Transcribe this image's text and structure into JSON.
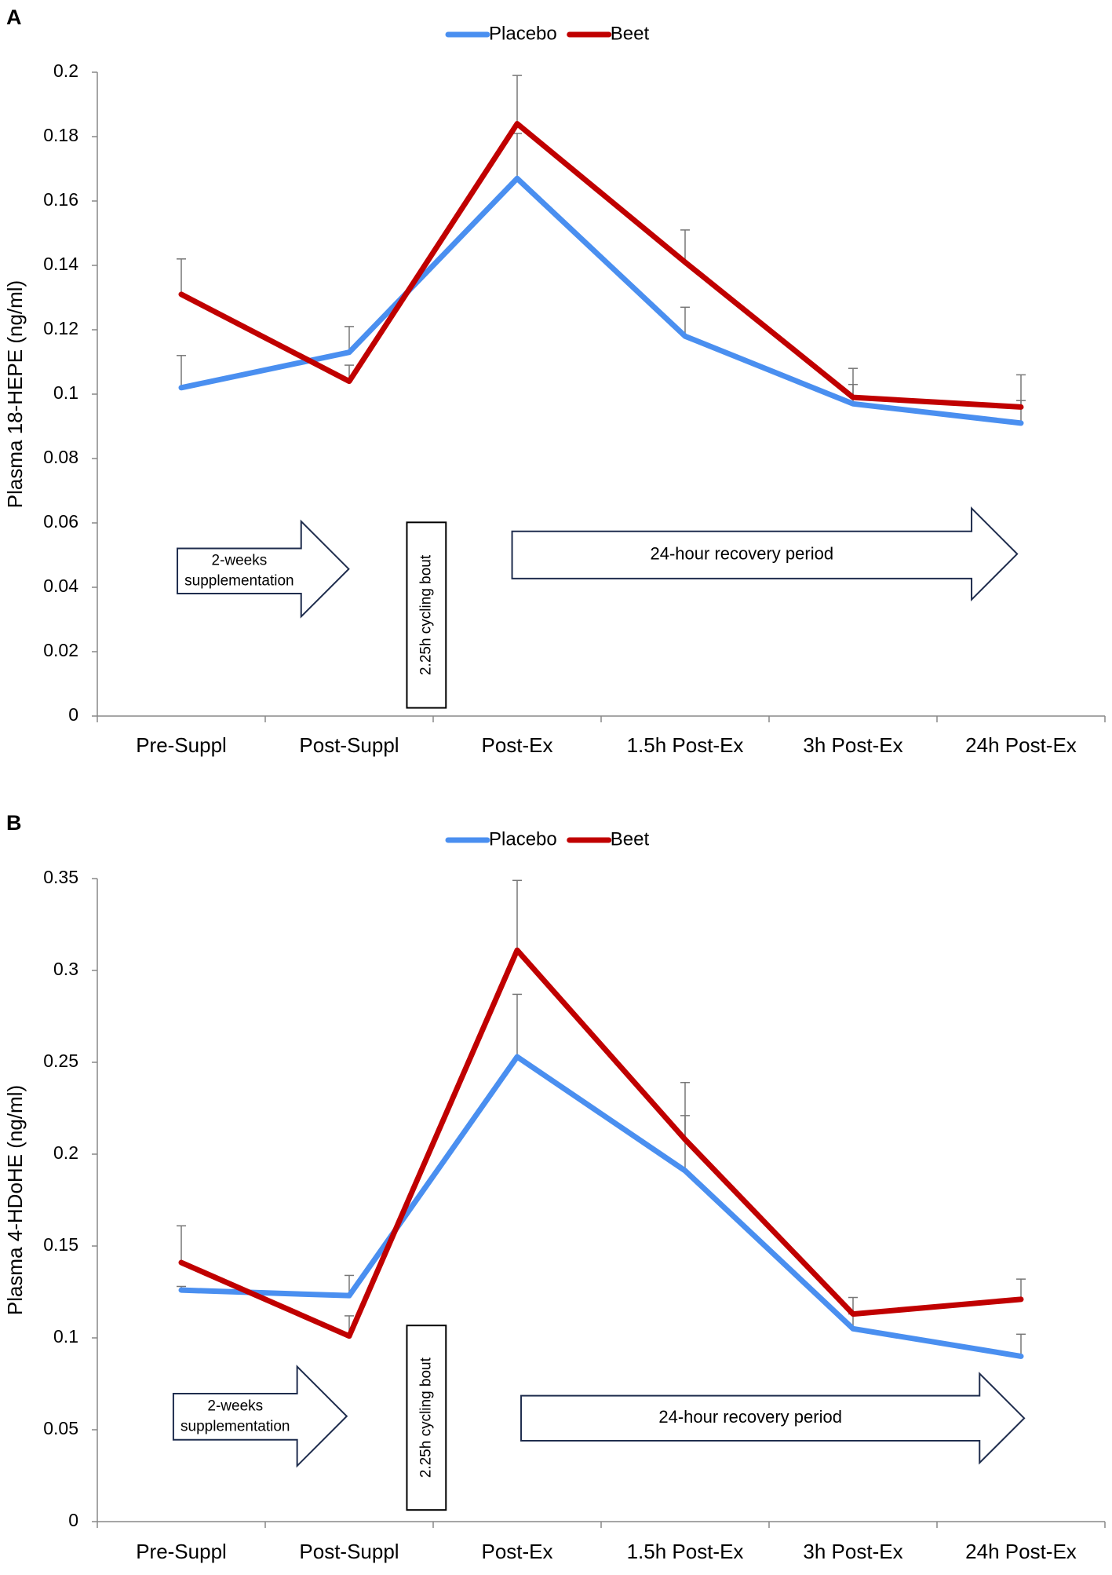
{
  "chart_data": [
    {
      "type": "line",
      "panel_label": "A",
      "ylabel": "Plasma 18-HEPE (ng/ml)",
      "categories": [
        "Pre-Suppl",
        "Post-Suppl",
        "Post-Ex",
        "1.5h Post-Ex",
        "3h Post-Ex",
        "24h Post-Ex"
      ],
      "series": [
        {
          "name": "Placebo",
          "color": "#4a8ff0",
          "values": [
            0.102,
            0.113,
            0.167,
            0.118,
            0.097,
            0.091
          ],
          "errors": [
            0.01,
            0.008,
            0.014,
            0.009,
            0.006,
            0.007
          ]
        },
        {
          "name": "Beet",
          "color": "#c00000",
          "values": [
            0.131,
            0.104,
            0.184,
            0.141,
            0.099,
            0.096
          ],
          "errors": [
            0.011,
            0.005,
            0.015,
            0.01,
            0.009,
            0.01
          ]
        }
      ],
      "ylim": [
        0,
        0.2
      ],
      "yticks": [
        0,
        0.02,
        0.04,
        0.06,
        0.08,
        0.1,
        0.12,
        0.14,
        0.16,
        0.18,
        0.2
      ],
      "annotations": {
        "supplementation": [
          "2-weeks",
          "supplementation"
        ],
        "cycling": "2.25h cycling bout",
        "recovery": "24-hour recovery period"
      }
    },
    {
      "type": "line",
      "panel_label": "B",
      "ylabel": "Plasma 4-HDoHE (ng/ml)",
      "categories": [
        "Pre-Suppl",
        "Post-Suppl",
        "Post-Ex",
        "1.5h Post-Ex",
        "3h Post-Ex",
        "24h Post-Ex"
      ],
      "series": [
        {
          "name": "Placebo",
          "color": "#4a8ff0",
          "values": [
            0.126,
            0.123,
            0.253,
            0.191,
            0.105,
            0.09
          ],
          "errors": [
            0.002,
            0.011,
            0.034,
            0.03,
            0.008,
            0.012
          ]
        },
        {
          "name": "Beet",
          "color": "#c00000",
          "values": [
            0.141,
            0.101,
            0.311,
            0.208,
            0.113,
            0.121
          ],
          "errors": [
            0.02,
            0.011,
            0.038,
            0.031,
            0.009,
            0.011
          ]
        }
      ],
      "ylim": [
        0,
        0.35
      ],
      "yticks": [
        0,
        0.05,
        0.1,
        0.15,
        0.2,
        0.25,
        0.3,
        0.35
      ],
      "annotations": {
        "supplementation": [
          "2-weeks",
          "supplementation"
        ],
        "cycling": "2.25h cycling bout",
        "recovery": "24-hour recovery period"
      }
    }
  ]
}
